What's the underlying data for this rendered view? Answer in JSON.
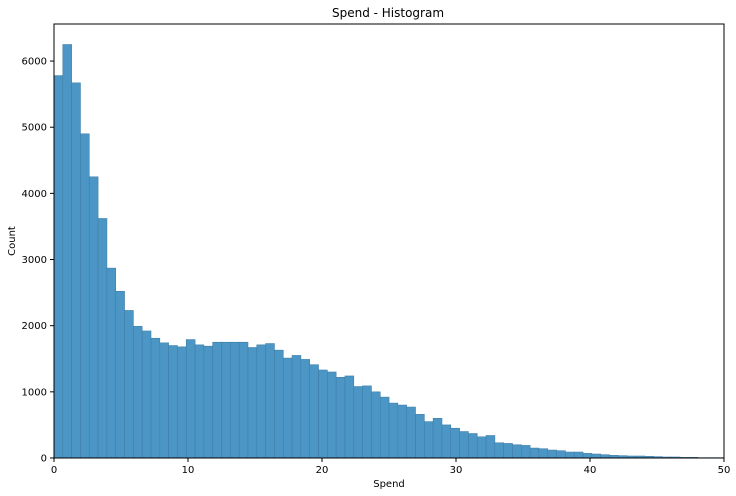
{
  "chart_data": {
    "type": "bar",
    "title": "Spend - Histogram",
    "xlabel": "Spend",
    "ylabel": "Count",
    "xlim": [
      0,
      50
    ],
    "ylim": [
      0,
      6560
    ],
    "xticks": [
      0,
      10,
      20,
      30,
      40,
      50
    ],
    "yticks": [
      0,
      1000,
      2000,
      3000,
      4000,
      5000,
      6000
    ],
    "grid": false,
    "bar_color": "#4c96c6",
    "bar_edge_color": "#3f7fa9",
    "bin_width": 0.658,
    "bin_start": 0,
    "values": [
      5780,
      6250,
      5670,
      4900,
      4250,
      3620,
      2870,
      2520,
      2230,
      1990,
      1920,
      1810,
      1740,
      1700,
      1680,
      1790,
      1710,
      1690,
      1750,
      1750,
      1750,
      1750,
      1670,
      1710,
      1730,
      1630,
      1510,
      1550,
      1490,
      1410,
      1330,
      1300,
      1220,
      1240,
      1080,
      1090,
      1000,
      920,
      830,
      800,
      770,
      660,
      550,
      600,
      500,
      450,
      400,
      370,
      320,
      340,
      230,
      220,
      200,
      190,
      150,
      140,
      120,
      110,
      90,
      90,
      70,
      60,
      50,
      40,
      35,
      30,
      30,
      25,
      20,
      15,
      15,
      10,
      10,
      5,
      5,
      5
    ]
  }
}
